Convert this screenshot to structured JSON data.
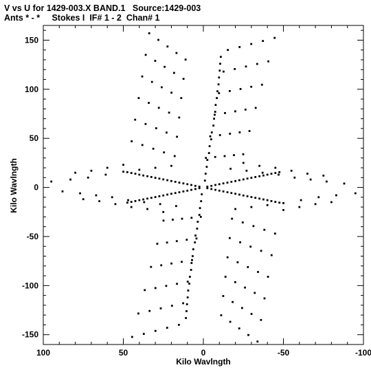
{
  "header": {
    "title_line_1": "V vs U for 1429-003.X BAND.1   Source:1429-003",
    "title_line_2": "Ants * - *     Stokes I  IF# 1 - 2  Chan# 1"
  },
  "chart_data": {
    "type": "scatter",
    "title": "V vs U for 1429-003.X BAND.1   Source:1429-003",
    "subtitle": "Ants * - *     Stokes I  IF# 1 - 2  Chan# 1",
    "xlabel": "Kilo Wavlngth",
    "ylabel": "Kilo Wavlngth",
    "xlim": [
      100,
      -100
    ],
    "ylim": [
      -160,
      165
    ],
    "x_ticks": [
      100,
      50,
      0,
      -50,
      -100
    ],
    "x_tick_labels": [
      "100",
      "50",
      "0",
      "-50",
      "-100"
    ],
    "y_ticks": [
      -150,
      -100,
      -50,
      0,
      50,
      100,
      150
    ],
    "y_tick_labels": [
      "-150",
      "-100",
      "-50",
      "0",
      "50",
      "100",
      "150"
    ],
    "marker_color": "#000000",
    "grid": false,
    "legend": "none",
    "description_of_points": "uv-coverage tracks: arcs arranged in a six-armed star pattern, point-symmetric about the origin",
    "points": [
      [
        -2.5,
        -0.8
      ],
      [
        -5.0,
        -1.6
      ],
      [
        -7.5,
        -2.5
      ],
      [
        -10.0,
        -3.3
      ],
      [
        -12.5,
        -4.1
      ],
      [
        -15.0,
        -4.9
      ],
      [
        -17.5,
        -5.7
      ],
      [
        -20.0,
        -6.5
      ],
      [
        -22.5,
        -7.3
      ],
      [
        -25.0,
        -8.2
      ],
      [
        -27.5,
        -9.0
      ],
      [
        -30.0,
        -9.8
      ],
      [
        -32.5,
        -10.6
      ],
      [
        -35.0,
        -11.4
      ],
      [
        -37.5,
        -12.2
      ],
      [
        -40.0,
        -13.0
      ],
      [
        -42.5,
        -13.9
      ],
      [
        -45.0,
        -14.7
      ],
      [
        -47.5,
        -15.5
      ],
      [
        2.5,
        0.8
      ],
      [
        5.0,
        1.6
      ],
      [
        7.5,
        2.5
      ],
      [
        10.0,
        3.3
      ],
      [
        12.5,
        4.1
      ],
      [
        15.0,
        4.9
      ],
      [
        17.5,
        5.7
      ],
      [
        20.0,
        6.5
      ],
      [
        22.5,
        7.3
      ],
      [
        25.0,
        8.2
      ],
      [
        27.5,
        9.0
      ],
      [
        30.0,
        9.8
      ],
      [
        32.5,
        10.6
      ],
      [
        35.0,
        11.4
      ],
      [
        37.5,
        12.2
      ],
      [
        40.0,
        13.0
      ],
      [
        42.5,
        13.9
      ],
      [
        45.0,
        14.7
      ],
      [
        47.5,
        15.5
      ],
      [
        -2.5,
        0.8
      ],
      [
        -5.0,
        1.6
      ],
      [
        -7.5,
        2.5
      ],
      [
        -10.0,
        3.3
      ],
      [
        -12.5,
        4.1
      ],
      [
        -15.0,
        4.9
      ],
      [
        -17.5,
        5.7
      ],
      [
        -20.0,
        6.5
      ],
      [
        -22.5,
        7.3
      ],
      [
        -25.0,
        8.2
      ],
      [
        -27.5,
        9.0
      ],
      [
        -30.0,
        9.8
      ],
      [
        -32.5,
        10.6
      ],
      [
        -35.0,
        11.4
      ],
      [
        -37.5,
        12.2
      ],
      [
        -40.0,
        13.0
      ],
      [
        -42.5,
        13.9
      ],
      [
        -45.0,
        14.7
      ],
      [
        -47.5,
        15.5
      ],
      [
        2.5,
        -0.8
      ],
      [
        5.0,
        -1.6
      ],
      [
        7.5,
        -2.5
      ],
      [
        10.0,
        -3.3
      ],
      [
        12.5,
        -4.1
      ],
      [
        15.0,
        -4.9
      ],
      [
        17.5,
        -5.7
      ],
      [
        20.0,
        -6.5
      ],
      [
        22.5,
        -7.3
      ],
      [
        25.0,
        -8.2
      ],
      [
        27.5,
        -9.0
      ],
      [
        30.0,
        -9.8
      ],
      [
        32.5,
        -10.6
      ],
      [
        35.0,
        -11.4
      ],
      [
        37.5,
        -12.2
      ],
      [
        40.0,
        -13.0
      ],
      [
        42.5,
        -13.9
      ],
      [
        45.0,
        -14.7
      ],
      [
        47.5,
        -15.5
      ],
      [
        -1.0,
        7
      ],
      [
        -1.4,
        14
      ],
      [
        -2.1,
        21
      ],
      [
        -2.5,
        28
      ],
      [
        -3.5,
        35
      ],
      [
        -3.9,
        42
      ],
      [
        -4.9,
        49
      ],
      [
        -5.3,
        56
      ],
      [
        -6.3,
        63
      ],
      [
        -6.7,
        70
      ],
      [
        -7.4,
        77
      ],
      [
        -7.7,
        84
      ],
      [
        -8.4,
        91
      ],
      [
        -8.8,
        98
      ],
      [
        -9.5,
        105
      ],
      [
        -9.8,
        112
      ],
      [
        -10.2,
        119
      ],
      [
        -10.5,
        126
      ],
      [
        -10.9,
        133
      ],
      [
        1.0,
        -7
      ],
      [
        1.4,
        -14
      ],
      [
        2.1,
        -21
      ],
      [
        2.5,
        -28
      ],
      [
        3.5,
        -35
      ],
      [
        3.9,
        -42
      ],
      [
        4.9,
        -49
      ],
      [
        5.3,
        -56
      ],
      [
        6.3,
        -63
      ],
      [
        6.7,
        -70
      ],
      [
        7.4,
        -77
      ],
      [
        7.7,
        -84
      ],
      [
        8.4,
        -91
      ],
      [
        8.8,
        -98
      ],
      [
        9.5,
        -105
      ],
      [
        9.8,
        -112
      ],
      [
        10.2,
        -119
      ],
      [
        10.5,
        -126
      ],
      [
        10.9,
        -133
      ],
      [
        33.8,
        157.0
      ],
      [
        28.1,
        150.3
      ],
      [
        22.4,
        143.6
      ],
      [
        16.8,
        136.9
      ],
      [
        11.1,
        130.2
      ],
      [
        -15.3,
        140.0
      ],
      [
        -22.6,
        143.0
      ],
      [
        -29.9,
        146.1
      ],
      [
        -37.2,
        149.2
      ],
      [
        -44.5,
        152.3
      ],
      [
        36.0,
        135.0
      ],
      [
        30.1,
        128.9
      ],
      [
        24.2,
        122.8
      ],
      [
        18.3,
        116.7
      ],
      [
        12.4,
        110.6
      ],
      [
        -12.6,
        118.0
      ],
      [
        -19.6,
        120.6
      ],
      [
        -26.6,
        123.2
      ],
      [
        -33.6,
        125.8
      ],
      [
        -40.6,
        128.4
      ],
      [
        38.2,
        113.0
      ],
      [
        32.1,
        107.5
      ],
      [
        26.0,
        102.0
      ],
      [
        19.9,
        96.5
      ],
      [
        13.8,
        91.0
      ],
      [
        -9.8,
        96.0
      ],
      [
        -16.5,
        98.2
      ],
      [
        -23.2,
        100.3
      ],
      [
        -29.9,
        102.5
      ],
      [
        -36.6,
        104.6
      ],
      [
        40.4,
        91.0
      ],
      [
        34.1,
        86.1
      ],
      [
        27.8,
        81.1
      ],
      [
        21.4,
        76.2
      ],
      [
        15.1,
        71.2
      ],
      [
        -7.1,
        74.0
      ],
      [
        -13.5,
        75.8
      ],
      [
        -19.9,
        77.5
      ],
      [
        -26.3,
        79.3
      ],
      [
        -32.7,
        81.0
      ],
      [
        42.6,
        69.0
      ],
      [
        36.1,
        64.6
      ],
      [
        29.5,
        60.3
      ],
      [
        23.0,
        55.9
      ],
      [
        16.5,
        51.6
      ],
      [
        -4.3,
        52.0
      ],
      [
        -10.4,
        53.3
      ],
      [
        -16.6,
        54.7
      ],
      [
        -22.7,
        56.1
      ],
      [
        -28.8,
        57.4
      ],
      [
        44.8,
        47.0
      ],
      [
        38.1,
        43.2
      ],
      [
        31.3,
        39.4
      ],
      [
        24.6,
        35.7
      ],
      [
        17.9,
        31.9
      ],
      [
        -1.6,
        30.0
      ],
      [
        -7.4,
        31.0
      ],
      [
        -13.3,
        31.9
      ],
      [
        -19.1,
        32.9
      ],
      [
        -24.9,
        33.8
      ],
      [
        -33.8,
        -157.0
      ],
      [
        -28.1,
        -150.3
      ],
      [
        -22.4,
        -143.6
      ],
      [
        -16.8,
        -136.9
      ],
      [
        -11.1,
        -130.2
      ],
      [
        15.3,
        -140.0
      ],
      [
        22.6,
        -143.0
      ],
      [
        29.9,
        -146.1
      ],
      [
        37.2,
        -149.2
      ],
      [
        44.5,
        -152.3
      ],
      [
        -36.0,
        -135.0
      ],
      [
        -30.1,
        -128.9
      ],
      [
        -24.2,
        -122.8
      ],
      [
        -18.3,
        -116.7
      ],
      [
        -12.4,
        -110.6
      ],
      [
        12.6,
        -118.0
      ],
      [
        19.6,
        -120.6
      ],
      [
        26.6,
        -123.2
      ],
      [
        33.6,
        -125.8
      ],
      [
        40.6,
        -128.4
      ],
      [
        -38.2,
        -113.0
      ],
      [
        -32.1,
        -107.5
      ],
      [
        -26.0,
        -102.0
      ],
      [
        -19.9,
        -96.5
      ],
      [
        -13.8,
        -91.0
      ],
      [
        9.8,
        -96.0
      ],
      [
        16.5,
        -98.2
      ],
      [
        23.2,
        -100.3
      ],
      [
        29.9,
        -102.5
      ],
      [
        36.6,
        -104.6
      ],
      [
        -40.4,
        -91.0
      ],
      [
        -34.1,
        -86.1
      ],
      [
        -27.8,
        -81.1
      ],
      [
        -21.4,
        -76.2
      ],
      [
        -15.1,
        -71.2
      ],
      [
        7.1,
        -74.0
      ],
      [
        13.5,
        -75.8
      ],
      [
        19.9,
        -77.5
      ],
      [
        26.3,
        -79.3
      ],
      [
        32.7,
        -81.0
      ],
      [
        -42.6,
        -69.0
      ],
      [
        -36.1,
        -64.6
      ],
      [
        -29.5,
        -60.3
      ],
      [
        -23.0,
        -55.9
      ],
      [
        -16.5,
        -51.6
      ],
      [
        4.3,
        -52.0
      ],
      [
        10.4,
        -53.3
      ],
      [
        16.6,
        -54.7
      ],
      [
        22.7,
        -56.1
      ],
      [
        28.8,
        -57.4
      ],
      [
        -44.8,
        -47.0
      ],
      [
        -38.1,
        -43.2
      ],
      [
        -31.3,
        -39.4
      ],
      [
        -24.6,
        -35.7
      ],
      [
        -17.9,
        -31.9
      ],
      [
        1.6,
        -30.0
      ],
      [
        7.4,
        -31.0
      ],
      [
        13.3,
        -31.9
      ],
      [
        19.1,
        -32.9
      ],
      [
        24.9,
        -33.8
      ],
      [
        95.0,
        6.0
      ],
      [
        83.0,
        8.0
      ],
      [
        72.0,
        10.0
      ],
      [
        61.0,
        13.0
      ],
      [
        50.0,
        16.0
      ],
      [
        40.0,
        18.0
      ],
      [
        30.0,
        20.0
      ],
      [
        20.0,
        22.0
      ],
      [
        88.0,
        -4.0
      ],
      [
        77.0,
        -6.0
      ],
      [
        67.0,
        -8.0
      ],
      [
        57.0,
        -10.0
      ],
      [
        47.0,
        -13.0
      ],
      [
        37.0,
        -15.0
      ],
      [
        27.0,
        -17.0
      ],
      [
        17.0,
        -19.0
      ],
      [
        -95.0,
        -6.0
      ],
      [
        -83.0,
        -8.0
      ],
      [
        -72.0,
        -10.0
      ],
      [
        -61.0,
        -13.0
      ],
      [
        -50.0,
        -16.0
      ],
      [
        -40.0,
        -18.0
      ],
      [
        -30.0,
        -20.0
      ],
      [
        -20.0,
        -22.0
      ],
      [
        -88.0,
        4.0
      ],
      [
        -77.0,
        6.0
      ],
      [
        -67.0,
        8.0
      ],
      [
        -57.0,
        10.0
      ],
      [
        -47.0,
        13.0
      ],
      [
        -37.0,
        15.0
      ],
      [
        -27.0,
        17.0
      ],
      [
        -17.0,
        19.0
      ],
      [
        80.0,
        15.0
      ],
      [
        70.0,
        17.0
      ],
      [
        60.0,
        20.0
      ],
      [
        50.0,
        23.0
      ],
      [
        -80.0,
        -15.0
      ],
      [
        -70.0,
        -17.0
      ],
      [
        -60.0,
        -20.0
      ],
      [
        -50.0,
        -23.0
      ],
      [
        75.0,
        -12.0
      ],
      [
        65.0,
        -14.0
      ],
      [
        55.0,
        -17.0
      ],
      [
        -75.0,
        12.0
      ],
      [
        -65.0,
        14.0
      ],
      [
        -55.0,
        17.0
      ],
      [
        45.0,
        -20.0
      ],
      [
        35.0,
        -22.0
      ],
      [
        25.0,
        -25.0
      ],
      [
        -45.0,
        20.0
      ],
      [
        -35.0,
        22.0
      ],
      [
        -25.0,
        25.0
      ]
    ]
  }
}
